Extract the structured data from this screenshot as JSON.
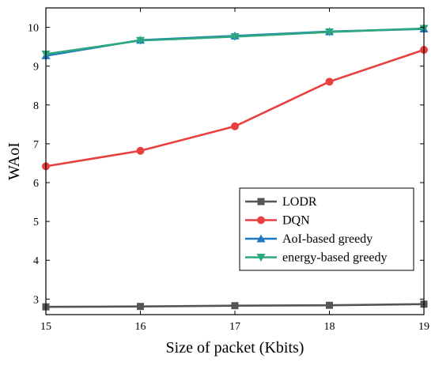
{
  "chart_data": {
    "type": "line",
    "xlabel": "Size of packet (Kbits)",
    "ylabel": "WAoI",
    "xlim": [
      15,
      19
    ],
    "ylim": [
      2.6,
      10.5
    ],
    "x": [
      15,
      16,
      17,
      18,
      19
    ],
    "x_ticks": [
      "15",
      "16",
      "17",
      "18",
      "19"
    ],
    "y_ticks": [
      "3",
      "4",
      "5",
      "6",
      "7",
      "8",
      "9",
      "10"
    ],
    "legend_position": "bottom-right",
    "series": [
      {
        "name": "LODR",
        "color": "#555555",
        "marker": "square",
        "values": [
          2.8,
          2.81,
          2.83,
          2.84,
          2.87
        ]
      },
      {
        "name": "DQN",
        "color": "#e8403f",
        "marker": "circle",
        "values": [
          6.42,
          6.82,
          7.45,
          8.6,
          9.42
        ]
      },
      {
        "name": "AoI-based greedy",
        "color": "#1f77c4",
        "marker": "triangle-up",
        "values": [
          9.27,
          9.67,
          9.78,
          9.89,
          9.96
        ]
      },
      {
        "name": "energy-based greedy",
        "color": "#2ca87f",
        "marker": "triangle-down",
        "values": [
          9.31,
          9.66,
          9.76,
          9.88,
          9.97
        ]
      }
    ]
  }
}
